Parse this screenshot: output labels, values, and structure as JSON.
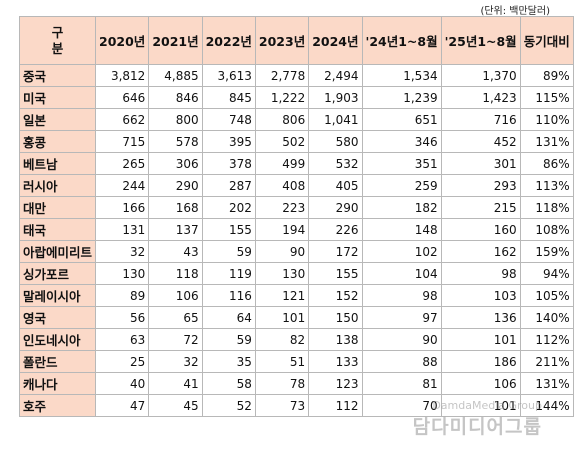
{
  "unit_note": "(단위: 백만달러)",
  "header": {
    "corner_top": "구",
    "corner_bottom": "분",
    "columns": [
      "2020년",
      "2021년",
      "2022년",
      "2023년",
      "2024년",
      "'24년1~8월",
      "'25년1~8월",
      "동기대비"
    ]
  },
  "rows": [
    {
      "name": "중국",
      "values": [
        "3,812",
        "4,885",
        "3,613",
        "2,778",
        "2,494",
        "1,534",
        "1,370",
        "89%"
      ]
    },
    {
      "name": "미국",
      "values": [
        "646",
        "846",
        "845",
        "1,222",
        "1,903",
        "1,239",
        "1,423",
        "115%"
      ]
    },
    {
      "name": "일본",
      "values": [
        "662",
        "800",
        "748",
        "806",
        "1,041",
        "651",
        "716",
        "110%"
      ]
    },
    {
      "name": "홍콩",
      "values": [
        "715",
        "578",
        "395",
        "502",
        "580",
        "346",
        "452",
        "131%"
      ]
    },
    {
      "name": "베트남",
      "values": [
        "265",
        "306",
        "378",
        "499",
        "532",
        "351",
        "301",
        "86%"
      ]
    },
    {
      "name": "러시아",
      "values": [
        "244",
        "290",
        "287",
        "408",
        "405",
        "259",
        "293",
        "113%"
      ]
    },
    {
      "name": "대만",
      "values": [
        "166",
        "168",
        "202",
        "223",
        "290",
        "182",
        "215",
        "118%"
      ]
    },
    {
      "name": "태국",
      "values": [
        "131",
        "137",
        "155",
        "194",
        "226",
        "148",
        "160",
        "108%"
      ]
    },
    {
      "name": "아랍에미리트",
      "values": [
        "32",
        "43",
        "59",
        "90",
        "172",
        "102",
        "162",
        "159%"
      ]
    },
    {
      "name": "싱가포르",
      "values": [
        "130",
        "118",
        "119",
        "130",
        "155",
        "104",
        "98",
        "94%"
      ]
    },
    {
      "name": "말레이시아",
      "values": [
        "89",
        "106",
        "116",
        "121",
        "152",
        "98",
        "103",
        "105%"
      ]
    },
    {
      "name": "영국",
      "values": [
        "56",
        "65",
        "64",
        "101",
        "150",
        "97",
        "136",
        "140%"
      ]
    },
    {
      "name": "인도네시아",
      "values": [
        "63",
        "72",
        "59",
        "82",
        "138",
        "90",
        "101",
        "112%"
      ]
    },
    {
      "name": "폴란드",
      "values": [
        "25",
        "32",
        "35",
        "51",
        "133",
        "88",
        "186",
        "211%"
      ]
    },
    {
      "name": "캐나다",
      "values": [
        "40",
        "41",
        "58",
        "78",
        "123",
        "81",
        "106",
        "131%"
      ]
    },
    {
      "name": "호주",
      "values": [
        "47",
        "45",
        "52",
        "73",
        "112",
        "70",
        "101",
        "144%"
      ]
    }
  ],
  "watermark": {
    "en": "DamdaMedia Group",
    "ko": "담다미디어그룹"
  }
}
